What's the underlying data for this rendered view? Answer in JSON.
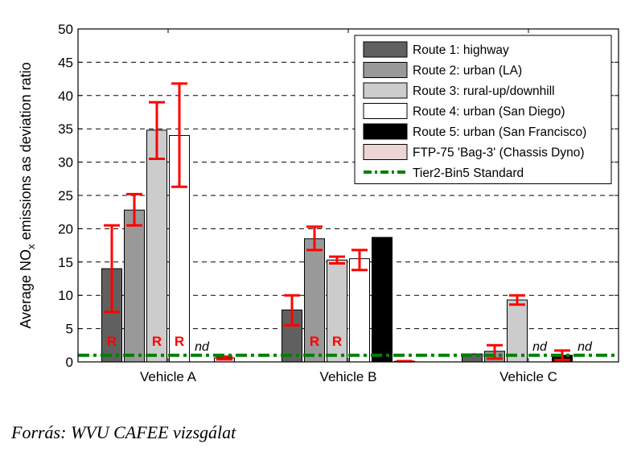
{
  "caption": "Forrás: WVU CAFEE vizsgálat",
  "chart_data": {
    "type": "bar",
    "title": "",
    "xlabel": "",
    "ylabel_parts": [
      "Average NO",
      "x",
      " emissions as deviation ratio"
    ],
    "ylim": [
      0,
      50
    ],
    "yticks": [
      0,
      5,
      10,
      15,
      20,
      25,
      30,
      35,
      40,
      45,
      50
    ],
    "grid": "horizontal dashed",
    "legend_position": "top-right",
    "categories": [
      "Vehicle A",
      "Vehicle B",
      "Vehicle C"
    ],
    "series": [
      {
        "name": "Route 1: highway",
        "color": "#606060",
        "values": [
          14.0,
          7.8,
          1.2
        ],
        "error_low": [
          7.5,
          5.5,
          null
        ],
        "error_high": [
          20.5,
          10.0,
          null
        ],
        "marks": [
          "R",
          "",
          ""
        ]
      },
      {
        "name": "Route 2: urban (LA)",
        "color": "#999999",
        "values": [
          22.8,
          18.5,
          1.6
        ],
        "error_low": [
          20.5,
          16.8,
          0.5
        ],
        "error_high": [
          25.2,
          20.3,
          2.5
        ],
        "marks": [
          "",
          "R",
          ""
        ]
      },
      {
        "name": "Route 3: rural-up/downhill",
        "color": "#cccccc",
        "values": [
          34.8,
          15.3,
          9.3
        ],
        "error_low": [
          30.5,
          14.8,
          8.6
        ],
        "error_high": [
          39.0,
          15.8,
          10.0
        ],
        "marks": [
          "R",
          "R",
          ""
        ]
      },
      {
        "name": "Route 4: urban (San Diego)",
        "color": "#ffffff",
        "values": [
          34.0,
          15.5,
          null
        ],
        "error_low": [
          26.3,
          13.8,
          null
        ],
        "error_high": [
          41.8,
          16.8,
          null
        ],
        "marks": [
          "R",
          "",
          "nd"
        ]
      },
      {
        "name": "Route 5: urban (San Francisco)",
        "color": "#000000",
        "values": [
          null,
          18.7,
          1.0
        ],
        "error_low": [
          null,
          null,
          0.3
        ],
        "error_high": [
          null,
          null,
          1.7
        ],
        "marks": [
          "nd",
          "",
          ""
        ]
      },
      {
        "name": "FTP-75 'Bag-3' (Chassis Dyno)",
        "color": "#ecd5d3",
        "values": [
          0.6,
          0.1,
          null
        ],
        "error_low": [
          0.4,
          0.1,
          null
        ],
        "error_high": [
          0.8,
          0.1,
          null
        ],
        "marks": [
          "",
          "",
          "nd"
        ]
      }
    ],
    "reference_line": {
      "name": "Tier2-Bin5 Standard",
      "value": 1.0,
      "color": "#008000"
    },
    "colors": {
      "error_bar": "#ff0000",
      "mark_R": "#ff0000",
      "grid": "#000000"
    }
  }
}
